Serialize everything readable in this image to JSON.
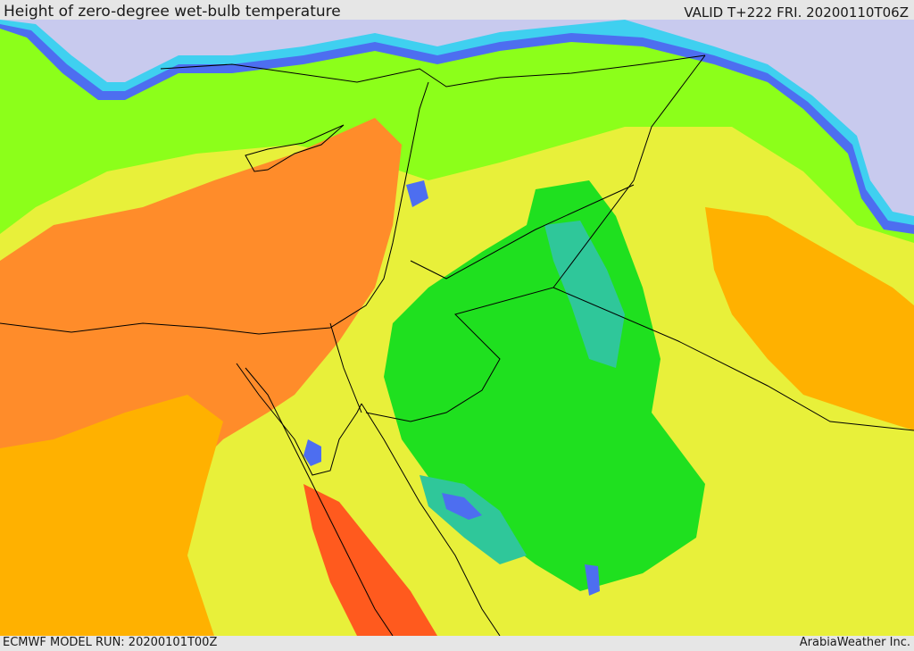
{
  "header": {
    "title": "Height of zero-degree wet-bulb temperature",
    "valid": "VALID T+222 FRI. 20200110T06Z"
  },
  "footer": {
    "model_run": "ECMWF MODEL RUN: 20200101T00Z",
    "credit": "ArabiaWeather Inc."
  },
  "colors": {
    "snow_lavender": "#c8caee",
    "band_blue": "#4d6ef0",
    "band_cyan": "#3fd0f0",
    "band_teal": "#2fc79a",
    "band_green": "#1fe01f",
    "band_lime": "#8cff1a",
    "band_yellow": "#e8f03a",
    "band_amber": "#ffb100",
    "band_orange": "#ff8c2a",
    "band_red_orange": "#ff5a1e",
    "borders": "#000000"
  }
}
